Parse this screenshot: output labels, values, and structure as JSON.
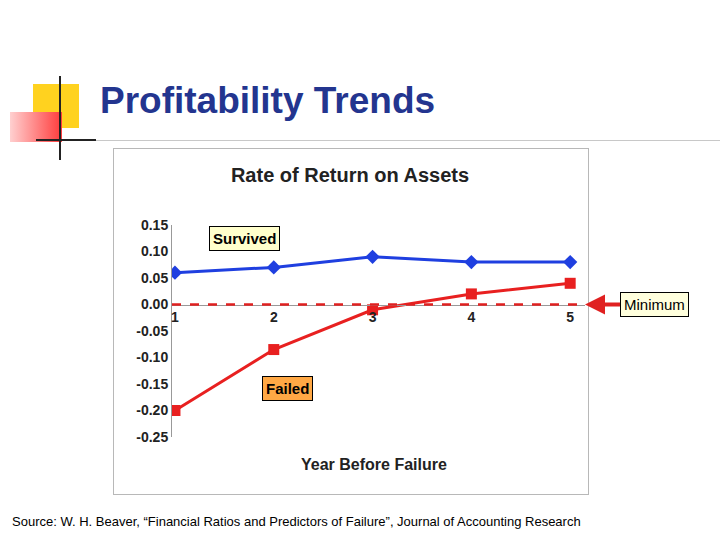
{
  "chart_data": {
    "type": "line",
    "heading": "Profitability Trends",
    "title": "Rate of Return on Assets",
    "x_label": "Year Before Failure",
    "x": [
      1,
      2,
      3,
      4,
      5
    ],
    "series": [
      {
        "name": "Survived",
        "color": "#1f3fe0",
        "marker": "diamond",
        "values": [
          0.06,
          0.07,
          0.09,
          0.08,
          0.08
        ]
      },
      {
        "name": "Failed",
        "color": "#e82020",
        "marker": "square",
        "values": [
          -0.2,
          -0.085,
          -0.01,
          0.02,
          0.04
        ]
      }
    ],
    "threshold": {
      "name": "Minimum",
      "value": 0,
      "color": "#e02020",
      "line_style": "dash"
    },
    "xlim": [
      0.97,
      5.15
    ],
    "xticks": [
      1,
      2,
      3,
      4,
      5
    ],
    "ylim": [
      -0.25,
      0.15
    ],
    "yticks": [
      0.15,
      {
        "value": 0.1,
        "label": "0.10"
      },
      0.05,
      {
        "value": 0,
        "label": "0.00"
      },
      -0.05,
      {
        "value": -0.1,
        "label": "-0.10"
      },
      -0.15,
      {
        "value": -0.2,
        "label": "-0.20"
      },
      -0.25
    ],
    "grid": false,
    "source": "Source: W. H. Beaver, “Financial Ratios and Predictors of Failure”, Journal of Accounting Research"
  }
}
